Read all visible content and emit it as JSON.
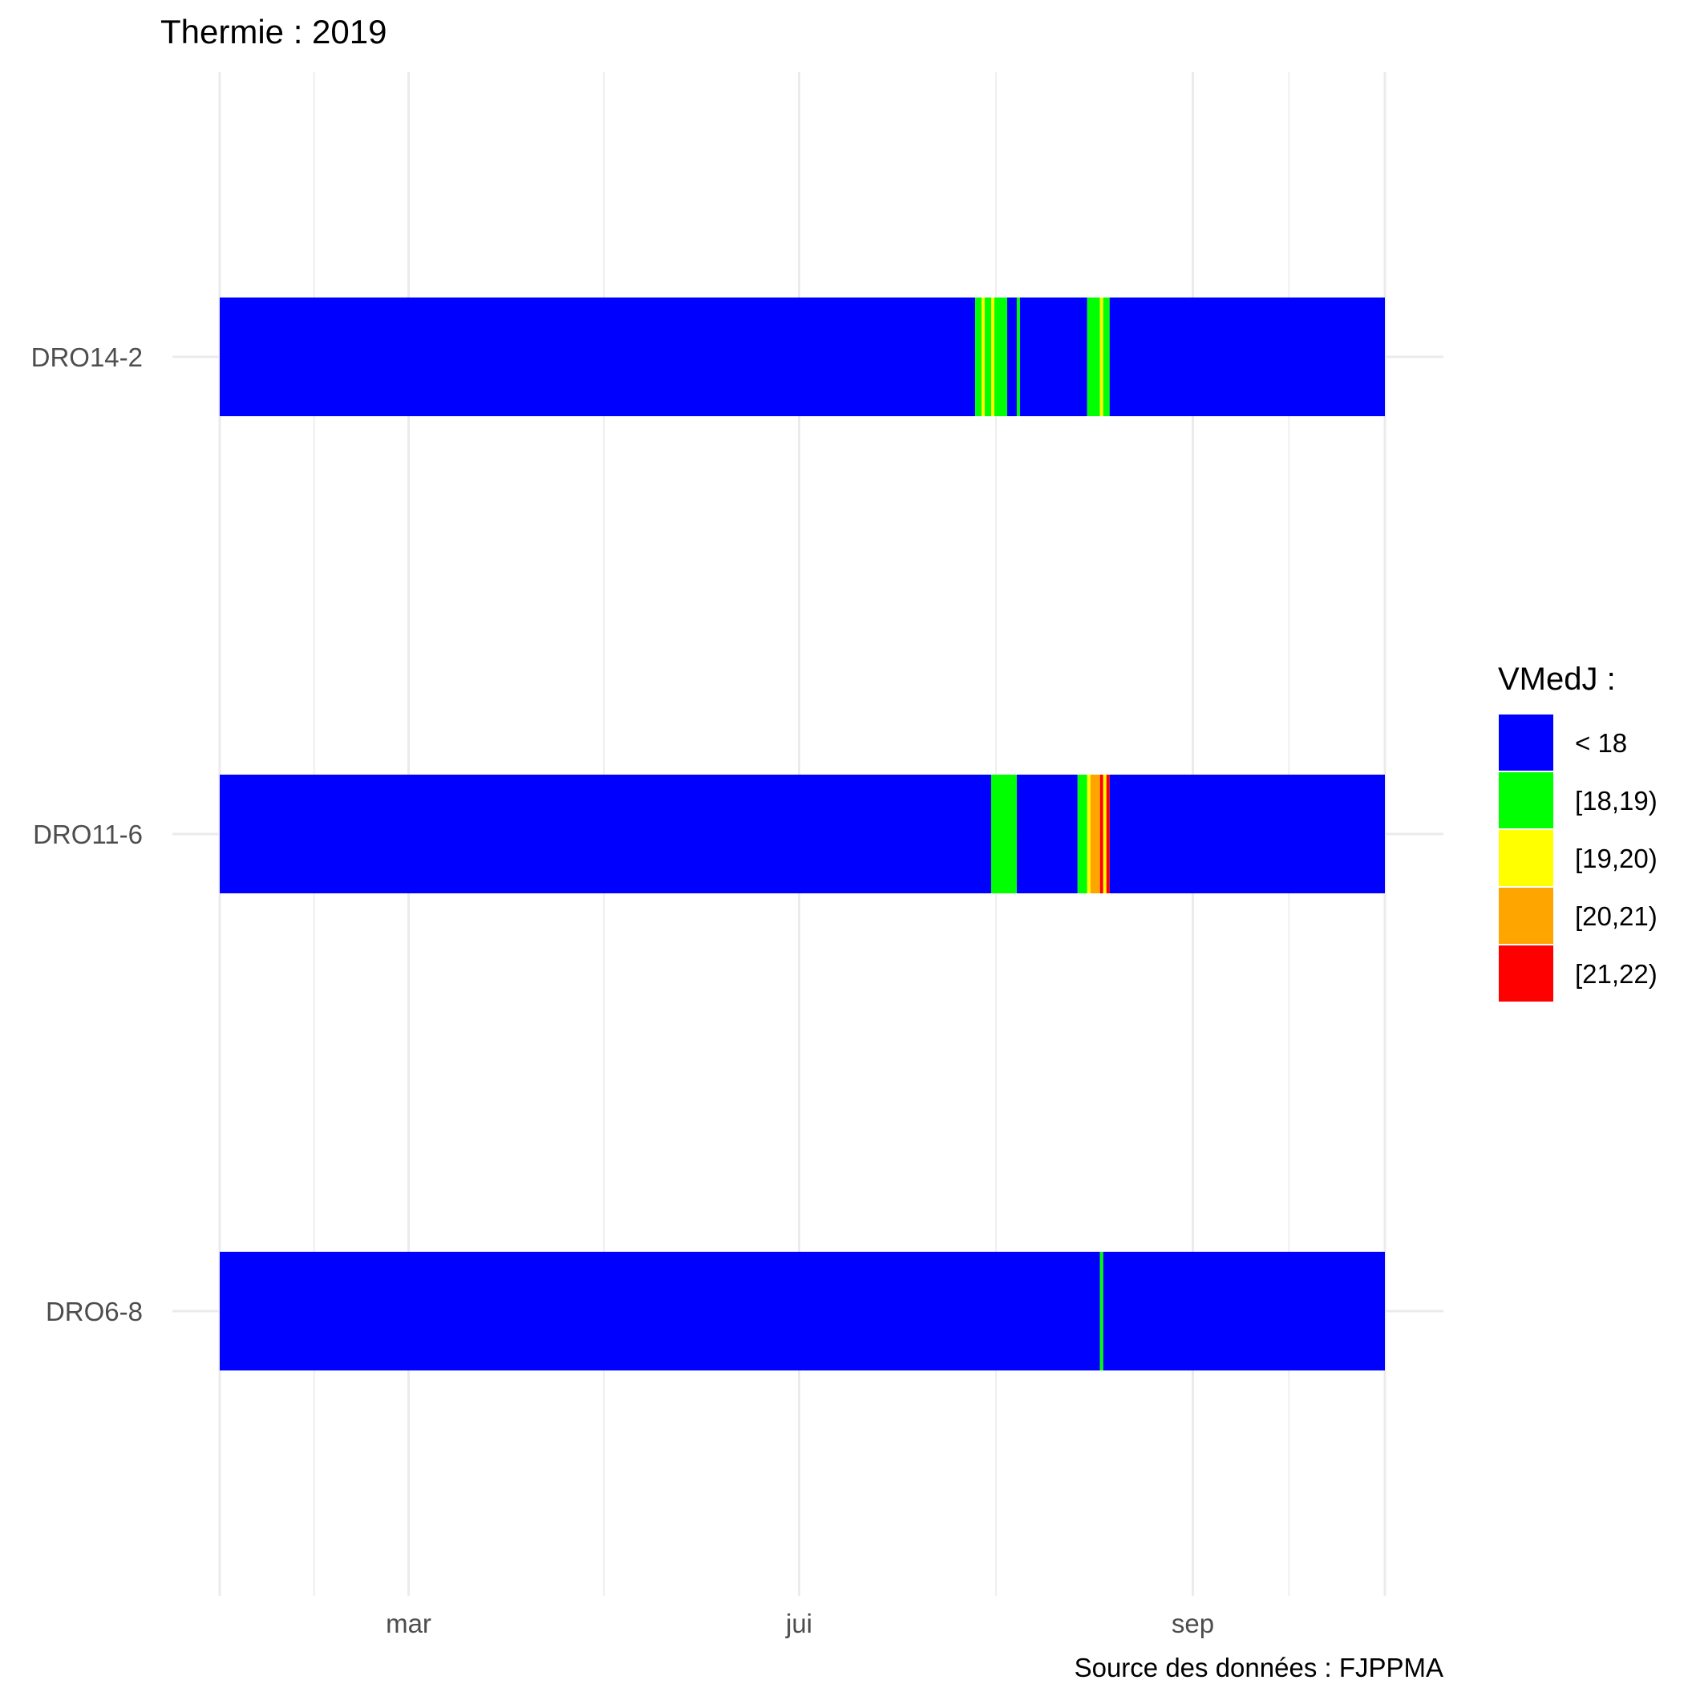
{
  "chart_data": {
    "type": "heatmap",
    "title": "Thermie : 2019",
    "caption": "Source des données : FJPPMA",
    "xlabel": "",
    "ylabel": "",
    "x_range_day_of_year": [
      1,
      365
    ],
    "x_ticks": [
      {
        "label": "mar",
        "day": 60
      },
      {
        "label": "jui",
        "day": 182
      },
      {
        "label": "sep",
        "day": 305
      }
    ],
    "stations": [
      "DRO14-2",
      "DRO11-6",
      "DRO6-8"
    ],
    "legend": {
      "title": "VMedJ :",
      "position": "right",
      "classes": [
        {
          "label": "< 18",
          "color": "#0000FF"
        },
        {
          "label": "[18,19)",
          "color": "#00FF00"
        },
        {
          "label": "[19,20)",
          "color": "#FFFF00"
        },
        {
          "label": "[20,21)",
          "color": "#FFA500"
        },
        {
          "label": "[21,22)",
          "color": "#FF0000"
        }
      ]
    },
    "series": [
      {
        "station": "DRO14-2",
        "segments": [
          {
            "start": 1,
            "end": 237,
            "class": "< 18"
          },
          {
            "start": 237,
            "end": 239,
            "class": "[18,19)"
          },
          {
            "start": 239,
            "end": 240,
            "class": "[19,20)"
          },
          {
            "start": 240,
            "end": 242,
            "class": "[18,19)"
          },
          {
            "start": 242,
            "end": 243,
            "class": "[19,20)"
          },
          {
            "start": 243,
            "end": 247,
            "class": "[18,19)"
          },
          {
            "start": 247,
            "end": 250,
            "class": "< 18"
          },
          {
            "start": 250,
            "end": 251,
            "class": "[18,19)"
          },
          {
            "start": 251,
            "end": 272,
            "class": "< 18"
          },
          {
            "start": 272,
            "end": 276,
            "class": "[18,19)"
          },
          {
            "start": 276,
            "end": 277,
            "class": "[19,20)"
          },
          {
            "start": 277,
            "end": 279,
            "class": "[18,19)"
          },
          {
            "start": 279,
            "end": 365,
            "class": "< 18"
          }
        ]
      },
      {
        "station": "DRO11-6",
        "segments": [
          {
            "start": 1,
            "end": 242,
            "class": "< 18"
          },
          {
            "start": 242,
            "end": 250,
            "class": "[18,19)"
          },
          {
            "start": 250,
            "end": 269,
            "class": "< 18"
          },
          {
            "start": 269,
            "end": 272,
            "class": "[18,19)"
          },
          {
            "start": 272,
            "end": 273,
            "class": "[19,20)"
          },
          {
            "start": 273,
            "end": 276,
            "class": "[20,21)"
          },
          {
            "start": 276,
            "end": 277,
            "class": "[21,22)"
          },
          {
            "start": 277,
            "end": 278,
            "class": "[19,20)"
          },
          {
            "start": 278,
            "end": 279,
            "class": "[21,22)"
          },
          {
            "start": 279,
            "end": 365,
            "class": "< 18"
          }
        ]
      },
      {
        "station": "DRO6-8",
        "segments": [
          {
            "start": 1,
            "end": 276,
            "class": "< 18"
          },
          {
            "start": 276,
            "end": 277,
            "class": "[18,19)"
          },
          {
            "start": 277,
            "end": 365,
            "class": "< 18"
          }
        ]
      }
    ]
  }
}
